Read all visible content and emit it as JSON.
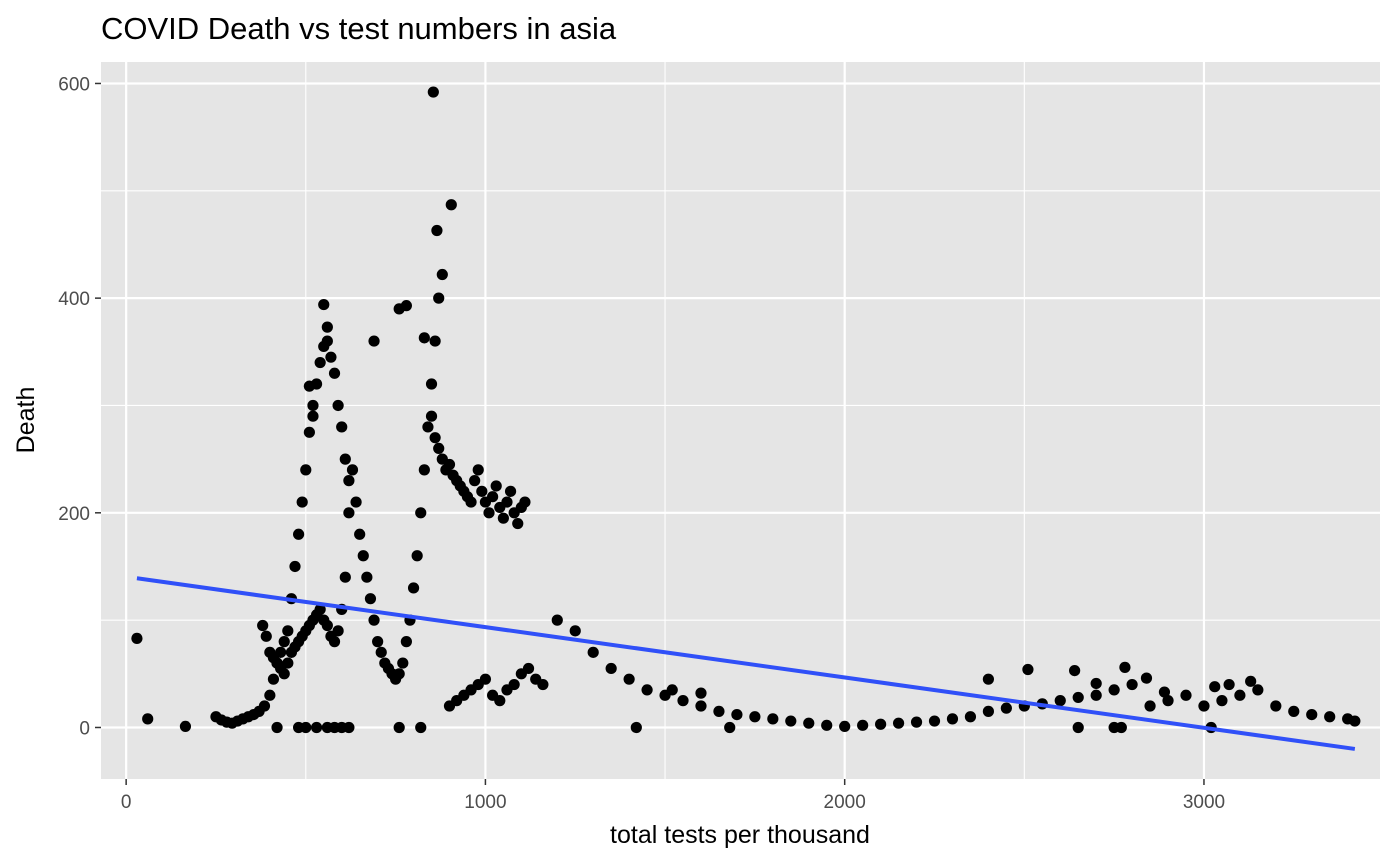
{
  "chart_data": {
    "type": "scatter",
    "title": "COVID Death vs test numbers in asia",
    "xlabel": "total tests per thousand",
    "ylabel": "Death",
    "xlim": [
      -70,
      3490
    ],
    "ylim": [
      -48,
      620
    ],
    "x_ticks": [
      0,
      1000,
      2000,
      3000
    ],
    "x_tick_labels": [
      "0",
      "1000",
      "2000",
      "3000"
    ],
    "y_ticks": [
      0,
      200,
      400,
      600
    ],
    "y_tick_labels": [
      "0",
      "200",
      "400",
      "600"
    ],
    "grid": true,
    "legend": "none",
    "colors": {
      "panel": "#e5e5e5",
      "grid": "#ffffff",
      "points": "#000000",
      "trend": "#3050f8"
    },
    "trend_line": {
      "x": [
        30,
        3420
      ],
      "y": [
        139,
        -20
      ]
    },
    "points": {
      "x": [
        30,
        60,
        165,
        250,
        265,
        280,
        295,
        310,
        325,
        340,
        355,
        370,
        385,
        400,
        410,
        420,
        430,
        440,
        450,
        460,
        470,
        480,
        490,
        500,
        510,
        520,
        530,
        540,
        550,
        560,
        570,
        580,
        590,
        600,
        610,
        620,
        380,
        390,
        400,
        410,
        420,
        430,
        440,
        450,
        460,
        470,
        480,
        490,
        500,
        510,
        520,
        530,
        540,
        550,
        560,
        570,
        580,
        590,
        600,
        610,
        620,
        630,
        640,
        650,
        660,
        670,
        680,
        690,
        700,
        710,
        720,
        730,
        740,
        750,
        760,
        770,
        780,
        790,
        800,
        810,
        820,
        830,
        840,
        850,
        860,
        870,
        850,
        860,
        870,
        880,
        890,
        900,
        910,
        920,
        930,
        940,
        950,
        960,
        970,
        980,
        990,
        1000,
        1010,
        1020,
        1030,
        1040,
        1050,
        1060,
        1070,
        1080,
        1090,
        1100,
        1110,
        900,
        920,
        940,
        960,
        980,
        1000,
        1020,
        1040,
        1060,
        1080,
        1100,
        1120,
        1140,
        1160,
        1200,
        1250,
        1300,
        1350,
        1400,
        1450,
        1500,
        1550,
        1600,
        1650,
        1700,
        1750,
        1800,
        1850,
        1900,
        1950,
        2000,
        2050,
        2100,
        2150,
        2200,
        2250,
        2300,
        2350,
        2400,
        2450,
        2500,
        2550,
        2600,
        2650,
        2700,
        2750,
        2800,
        2850,
        2900,
        2950,
        3000,
        3050,
        3100,
        3150,
        3200,
        3250,
        3300,
        3350,
        3400,
        3420,
        2400,
        2510,
        2640,
        2700,
        2780,
        2840,
        2890,
        3030,
        3070,
        3130,
        855,
        905,
        865,
        880,
        550,
        560,
        690,
        780,
        760,
        830,
        510,
        520,
        480,
        500,
        530,
        560,
        580,
        600,
        620,
        760,
        820,
        420,
        1420,
        1680,
        2650,
        2750,
        2770,
        3020,
        1520,
        1600
      ],
      "y": [
        83,
        8,
        1,
        10,
        7,
        5,
        4,
        6,
        8,
        10,
        12,
        15,
        20,
        30,
        45,
        60,
        70,
        80,
        90,
        120,
        150,
        180,
        210,
        240,
        275,
        300,
        320,
        340,
        355,
        360,
        345,
        330,
        300,
        280,
        250,
        230,
        95,
        85,
        70,
        65,
        60,
        55,
        50,
        60,
        70,
        75,
        80,
        85,
        90,
        95,
        100,
        105,
        110,
        100,
        95,
        85,
        80,
        90,
        110,
        140,
        200,
        240,
        210,
        180,
        160,
        140,
        120,
        100,
        80,
        70,
        60,
        55,
        50,
        45,
        50,
        60,
        80,
        100,
        130,
        160,
        200,
        240,
        280,
        320,
        360,
        400,
        290,
        270,
        260,
        250,
        240,
        245,
        235,
        230,
        225,
        220,
        215,
        210,
        230,
        240,
        220,
        210,
        200,
        215,
        225,
        205,
        195,
        210,
        220,
        200,
        190,
        205,
        210,
        20,
        25,
        30,
        35,
        40,
        45,
        30,
        25,
        35,
        40,
        50,
        55,
        45,
        40,
        100,
        90,
        70,
        55,
        45,
        35,
        30,
        25,
        20,
        15,
        12,
        10,
        8,
        6,
        4,
        2,
        1,
        2,
        3,
        4,
        5,
        6,
        8,
        10,
        15,
        18,
        20,
        22,
        25,
        28,
        30,
        35,
        40,
        20,
        25,
        30,
        20,
        25,
        30,
        35,
        20,
        15,
        12,
        10,
        8,
        6,
        45,
        54,
        53,
        41,
        56,
        46,
        33,
        38,
        40,
        43,
        592,
        487,
        463,
        422,
        394,
        373,
        360,
        393,
        390,
        363,
        318,
        290,
        0,
        0,
        0,
        0,
        0,
        0,
        0,
        0,
        0,
        0,
        0,
        0,
        0,
        0,
        0,
        0,
        35,
        32
      ]
    }
  }
}
